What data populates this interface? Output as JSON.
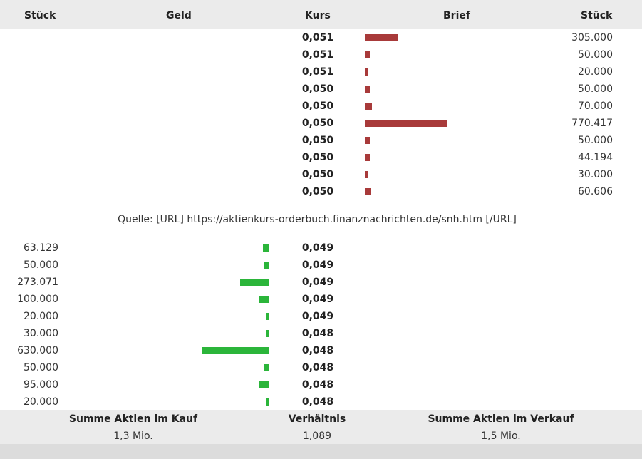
{
  "headers": {
    "bid_qty": "Stück",
    "bid": "Geld",
    "price": "Kurs",
    "ask": "Brief",
    "ask_qty": "Stück"
  },
  "asks": [
    {
      "price": "0,051",
      "qty": "305.000",
      "amount": 305000
    },
    {
      "price": "0,051",
      "qty": "50.000",
      "amount": 50000
    },
    {
      "price": "0,051",
      "qty": "20.000",
      "amount": 20000
    },
    {
      "price": "0,050",
      "qty": "50.000",
      "amount": 50000
    },
    {
      "price": "0,050",
      "qty": "70.000",
      "amount": 70000
    },
    {
      "price": "0,050",
      "qty": "770.417",
      "amount": 770417
    },
    {
      "price": "0,050",
      "qty": "50.000",
      "amount": 50000
    },
    {
      "price": "0,050",
      "qty": "44.194",
      "amount": 44194
    },
    {
      "price": "0,050",
      "qty": "30.000",
      "amount": 30000
    },
    {
      "price": "0,050",
      "qty": "60.606",
      "amount": 60606
    }
  ],
  "source": "Quelle: [URL] https://aktienkurs-orderbuch.finanznachrichten.de/snh.htm [/URL]",
  "bids": [
    {
      "price": "0,049",
      "qty": "63.129",
      "amount": 63129
    },
    {
      "price": "0,049",
      "qty": "50.000",
      "amount": 50000
    },
    {
      "price": "0,049",
      "qty": "273.071",
      "amount": 273071
    },
    {
      "price": "0,049",
      "qty": "100.000",
      "amount": 100000
    },
    {
      "price": "0,049",
      "qty": "20.000",
      "amount": 20000
    },
    {
      "price": "0,048",
      "qty": "30.000",
      "amount": 30000
    },
    {
      "price": "0,048",
      "qty": "630.000",
      "amount": 630000
    },
    {
      "price": "0,048",
      "qty": "50.000",
      "amount": 50000
    },
    {
      "price": "0,048",
      "qty": "95.000",
      "amount": 95000
    },
    {
      "price": "0,048",
      "qty": "20.000",
      "amount": 20000
    }
  ],
  "footer": {
    "buy_label": "Summe Aktien im Kauf",
    "buy_value": "1,3 Mio.",
    "ratio_label": "Verhältnis",
    "ratio_value": "1,089",
    "sell_label": "Summe Aktien im Verkauf",
    "sell_value": "1,5 Mio."
  },
  "colors": {
    "ask_bar": "#a83a3a",
    "bid_bar": "#2bb53a",
    "header_bg": "#ebebeb"
  }
}
